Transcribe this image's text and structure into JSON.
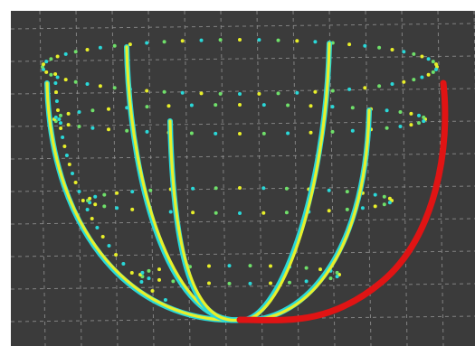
{
  "scene": {
    "background": "#3b3b3b",
    "grid_color": "#9a9a9a",
    "colors": {
      "cyan": "#2ad8d8",
      "yellow": "#e8ef2a",
      "green": "#6fe06a",
      "red": "#e01414"
    },
    "shape": "wireframe bowl / half-ellipsoid of dotted rings and solid meridian curves",
    "rings_visible": 4,
    "meridians_visible": 6,
    "highlighted_meridian_color": "red"
  }
}
